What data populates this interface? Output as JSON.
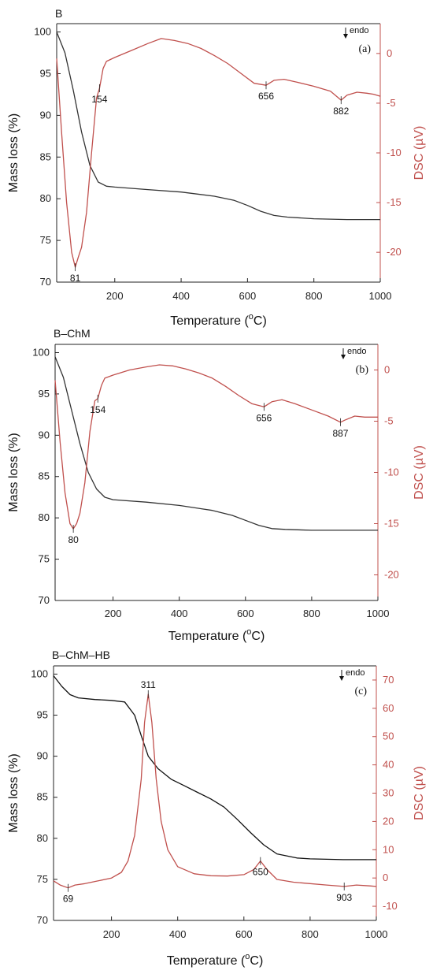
{
  "colors": {
    "mass": "#333333",
    "dsc": "#c0504d"
  },
  "chart_data": [
    {
      "type": "line",
      "panel_name": "B",
      "panel_letter": "(a)",
      "endo_label": "endo",
      "xlabel_main": "Temperature (",
      "xlabel_sup": "o",
      "xlabel_end": "C)",
      "ylabel": "Mass loss (%)",
      "y2label": "DSC (µV)",
      "xlim": [
        25,
        1000
      ],
      "ylim": [
        70,
        101
      ],
      "y2lim": [
        -23,
        3
      ],
      "xticks": [
        200,
        400,
        600,
        800,
        1000
      ],
      "yticks": [
        70,
        75,
        80,
        85,
        90,
        95,
        100
      ],
      "y2ticks": [
        -20,
        -15,
        -10,
        -5,
        0
      ],
      "series": [
        {
          "axis": "left",
          "color": "#333333",
          "x": [
            25,
            50,
            75,
            100,
            125,
            150,
            175,
            200,
            300,
            400,
            500,
            560,
            600,
            640,
            680,
            720,
            800,
            900,
            1000
          ],
          "y": [
            100,
            97.5,
            93,
            88,
            84,
            82,
            81.5,
            81.4,
            81.1,
            80.8,
            80.3,
            79.8,
            79.2,
            78.5,
            78,
            77.8,
            77.6,
            77.5,
            77.5
          ]
        },
        {
          "axis": "right",
          "color": "#c0504d",
          "x": [
            25,
            40,
            55,
            70,
            81,
            90,
            100,
            115,
            130,
            145,
            154,
            165,
            175,
            200,
            250,
            300,
            340,
            380,
            420,
            460,
            500,
            540,
            580,
            620,
            656,
            680,
            710,
            750,
            800,
            850,
            882,
            900,
            930,
            960,
            980,
            1000
          ],
          "y": [
            -0.5,
            -8,
            -15,
            -20,
            -21.5,
            -20.5,
            -19.5,
            -16,
            -10,
            -4.5,
            -3.5,
            -1.5,
            -0.8,
            -0.4,
            0.3,
            1,
            1.5,
            1.3,
            1,
            0.5,
            -0.2,
            -1,
            -2,
            -3,
            -3.2,
            -2.7,
            -2.6,
            -2.9,
            -3.3,
            -3.8,
            -4.7,
            -4.2,
            -3.9,
            -4,
            -4.1,
            -4.3
          ]
        }
      ],
      "annotations": [
        {
          "text": "81",
          "x": 81,
          "axis": "right",
          "y": -21.5,
          "pos": "below"
        },
        {
          "text": "154",
          "x": 154,
          "axis": "right",
          "y": -3.5,
          "pos": "below"
        },
        {
          "text": "656",
          "x": 656,
          "axis": "right",
          "y": -3.2,
          "pos": "below"
        },
        {
          "text": "882",
          "x": 882,
          "axis": "right",
          "y": -4.7,
          "pos": "below"
        }
      ]
    },
    {
      "type": "line",
      "panel_name": "B–ChM",
      "panel_letter": "(b)",
      "endo_label": "endo",
      "xlabel_main": "Temperature (",
      "xlabel_sup": "o",
      "xlabel_end": "C)",
      "ylabel": "Mass loss (%)",
      "y2label": "DSC (µV)",
      "xlim": [
        25,
        1000
      ],
      "ylim": [
        70,
        101
      ],
      "y2lim": [
        -22.5,
        2.5
      ],
      "xticks": [
        200,
        400,
        600,
        800,
        1000
      ],
      "yticks": [
        70,
        75,
        80,
        85,
        90,
        95,
        100
      ],
      "y2ticks": [
        -20,
        -15,
        -10,
        -5,
        0
      ],
      "series": [
        {
          "axis": "left",
          "color": "#333333",
          "x": [
            25,
            50,
            75,
            100,
            125,
            150,
            175,
            200,
            300,
            400,
            500,
            560,
            600,
            640,
            680,
            720,
            800,
            900,
            1000
          ],
          "y": [
            99.5,
            97,
            93,
            89,
            85.5,
            83.5,
            82.5,
            82.2,
            81.9,
            81.5,
            80.9,
            80.3,
            79.7,
            79.1,
            78.7,
            78.6,
            78.5,
            78.5,
            78.5
          ]
        },
        {
          "axis": "right",
          "color": "#c0504d",
          "x": [
            25,
            40,
            55,
            70,
            80,
            90,
            100,
            115,
            130,
            145,
            154,
            165,
            175,
            200,
            250,
            300,
            340,
            380,
            420,
            460,
            500,
            540,
            580,
            620,
            656,
            680,
            710,
            750,
            800,
            850,
            887,
            900,
            930,
            960,
            980,
            1000
          ],
          "y": [
            -1,
            -7,
            -12,
            -15,
            -15.5,
            -15,
            -14,
            -11,
            -6,
            -3,
            -2.8,
            -1.5,
            -0.8,
            -0.5,
            0,
            0.3,
            0.5,
            0.4,
            0.1,
            -0.3,
            -0.8,
            -1.6,
            -2.5,
            -3.3,
            -3.6,
            -3.1,
            -2.9,
            -3.3,
            -3.9,
            -4.5,
            -5.1,
            -4.9,
            -4.5,
            -4.6,
            -4.6,
            -4.6
          ]
        }
      ],
      "annotations": [
        {
          "text": "80",
          "x": 80,
          "axis": "right",
          "y": -15.5,
          "pos": "below"
        },
        {
          "text": "154",
          "x": 154,
          "axis": "right",
          "y": -2.8,
          "pos": "below"
        },
        {
          "text": "656",
          "x": 656,
          "axis": "right",
          "y": -3.6,
          "pos": "below"
        },
        {
          "text": "887",
          "x": 887,
          "axis": "right",
          "y": -5.1,
          "pos": "below"
        }
      ]
    },
    {
      "type": "line",
      "panel_name": "B–ChM–HB",
      "panel_letter": "(c)",
      "endo_label": "endo",
      "xlabel_main": "Temperature (",
      "xlabel_sup": "o",
      "xlabel_end": "C)",
      "ylabel": "Mass loss (%)",
      "y2label": "DSC (µV)",
      "xlim": [
        25,
        1000
      ],
      "ylim": [
        70,
        101
      ],
      "y2lim": [
        -15,
        75
      ],
      "xticks": [
        200,
        400,
        600,
        800,
        1000
      ],
      "yticks": [
        70,
        75,
        80,
        85,
        90,
        95,
        100
      ],
      "y2ticks": [
        -10,
        0,
        10,
        20,
        30,
        40,
        50,
        60,
        70
      ],
      "series": [
        {
          "axis": "left",
          "color": "#111111",
          "x": [
            25,
            50,
            75,
            100,
            150,
            200,
            240,
            270,
            290,
            311,
            340,
            380,
            420,
            460,
            500,
            540,
            580,
            620,
            660,
            700,
            760,
            800,
            900,
            1000
          ],
          "y": [
            99.8,
            98.5,
            97.5,
            97.1,
            96.9,
            96.8,
            96.6,
            95,
            92.5,
            90,
            88.5,
            87.2,
            86.4,
            85.6,
            84.8,
            83.8,
            82.3,
            80.7,
            79.2,
            78.1,
            77.6,
            77.5,
            77.4,
            77.4
          ]
        },
        {
          "axis": "right",
          "color": "#c0504d",
          "x": [
            25,
            45,
            69,
            90,
            120,
            160,
            200,
            230,
            250,
            270,
            290,
            300,
            311,
            322,
            335,
            350,
            370,
            400,
            450,
            500,
            550,
            600,
            630,
            650,
            670,
            700,
            750,
            800,
            850,
            903,
            940,
            980,
            1000
          ],
          "y": [
            -1,
            -2.5,
            -3.5,
            -2.5,
            -2,
            -1,
            0,
            2,
            6,
            15,
            35,
            55,
            65,
            55,
            35,
            20,
            10,
            4,
            1.5,
            0.8,
            0.7,
            1.2,
            3,
            6,
            3,
            -0.5,
            -1.5,
            -2,
            -2.5,
            -3,
            -2.5,
            -2.8,
            -3
          ]
        }
      ],
      "annotations": [
        {
          "text": "69",
          "x": 69,
          "axis": "right",
          "y": -3.5,
          "pos": "below"
        },
        {
          "text": "311",
          "x": 311,
          "axis": "right",
          "y": 65,
          "pos": "above"
        },
        {
          "text": "650",
          "x": 650,
          "axis": "right",
          "y": 6,
          "pos": "below"
        },
        {
          "text": "903",
          "x": 903,
          "axis": "right",
          "y": -3,
          "pos": "below"
        }
      ]
    }
  ]
}
